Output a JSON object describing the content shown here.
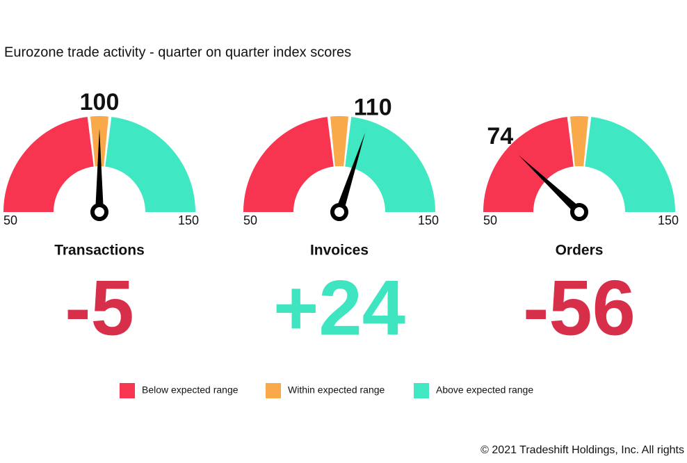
{
  "chart_data": {
    "type": "gauge",
    "title": "Eurozone trade activity - quarter on quarter index scores",
    "range": [
      50,
      150
    ],
    "bands": [
      {
        "name": "Below expected range",
        "color": "#f73550",
        "from": 50,
        "to": 96
      },
      {
        "name": "Within expected range",
        "color": "#f9a94a",
        "from": 97,
        "to": 103
      },
      {
        "name": "Above expected range",
        "color": "#3fe8c2",
        "from": 104,
        "to": 150
      }
    ],
    "gauges": [
      {
        "name": "Transactions",
        "value": 100,
        "change": "-5",
        "change_color": "#d72f4a"
      },
      {
        "name": "Invoices",
        "value": 110,
        "change": "+24",
        "change_color": "#3fe5c1"
      },
      {
        "name": "Orders",
        "value": 74,
        "change": "-56",
        "change_color": "#d72f4a"
      }
    ]
  },
  "footer": "© 2021 Tradeshift Holdings, Inc. All rights"
}
